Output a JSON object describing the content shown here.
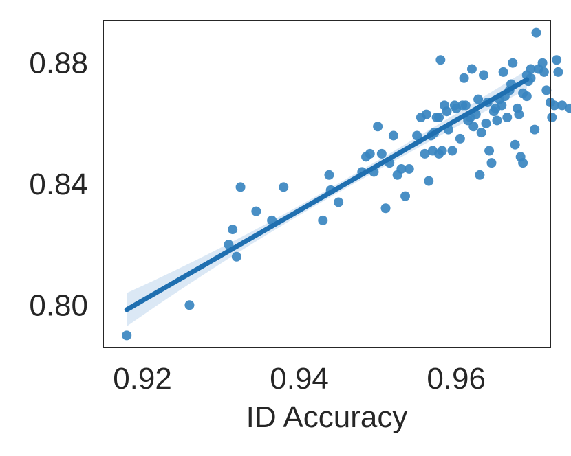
{
  "chart_data": {
    "type": "scatter",
    "title": "",
    "xlabel": "ID Accuracy",
    "ylabel": "",
    "xlim": [
      0.915,
      0.972
    ],
    "ylim": [
      0.786,
      0.894
    ],
    "x_ticks": [
      0.92,
      0.94,
      0.96
    ],
    "x_tick_labels": [
      "0.92",
      "0.94",
      "0.96"
    ],
    "y_ticks": [
      0.8,
      0.84,
      0.88
    ],
    "y_tick_labels": [
      "0.80",
      "0.84",
      "0.88"
    ],
    "grid": false,
    "legend": "none",
    "colors": {
      "points": "#3a86c0",
      "line": "#1f6fb0",
      "band": "#cfe0f1",
      "axes": "#262626"
    },
    "regression": {
      "x": [
        0.918,
        0.969
      ],
      "y": [
        0.7985,
        0.8745
      ],
      "band_halfwidth": [
        0.0055,
        0.0015,
        0.0032
      ]
    },
    "points": [
      [
        0.918,
        0.79
      ],
      [
        0.926,
        0.8
      ],
      [
        0.9315,
        0.825
      ],
      [
        0.931,
        0.82
      ],
      [
        0.932,
        0.816
      ],
      [
        0.9325,
        0.839
      ],
      [
        0.9345,
        0.831
      ],
      [
        0.9365,
        0.828
      ],
      [
        0.938,
        0.839
      ],
      [
        0.943,
        0.828
      ],
      [
        0.9438,
        0.843
      ],
      [
        0.944,
        0.838
      ],
      [
        0.945,
        0.834
      ],
      [
        0.948,
        0.844
      ],
      [
        0.9485,
        0.849
      ],
      [
        0.949,
        0.85
      ],
      [
        0.9495,
        0.844
      ],
      [
        0.95,
        0.859
      ],
      [
        0.9505,
        0.85
      ],
      [
        0.951,
        0.832
      ],
      [
        0.9515,
        0.847
      ],
      [
        0.952,
        0.856
      ],
      [
        0.9525,
        0.843
      ],
      [
        0.953,
        0.845
      ],
      [
        0.9535,
        0.836
      ],
      [
        0.954,
        0.845
      ],
      [
        0.955,
        0.856
      ],
      [
        0.9555,
        0.862
      ],
      [
        0.956,
        0.85
      ],
      [
        0.9562,
        0.863
      ],
      [
        0.9565,
        0.841
      ],
      [
        0.957,
        0.851
      ],
      [
        0.9572,
        0.857
      ],
      [
        0.9575,
        0.862
      ],
      [
        0.9578,
        0.85
      ],
      [
        0.958,
        0.881
      ],
      [
        0.9582,
        0.851
      ],
      [
        0.9585,
        0.866
      ],
      [
        0.959,
        0.858
      ],
      [
        0.9595,
        0.851
      ],
      [
        0.96,
        0.865
      ],
      [
        0.9605,
        0.855
      ],
      [
        0.961,
        0.875
      ],
      [
        0.9612,
        0.866
      ],
      [
        0.9615,
        0.861
      ],
      [
        0.962,
        0.878
      ],
      [
        0.9622,
        0.859
      ],
      [
        0.9625,
        0.863
      ],
      [
        0.963,
        0.843
      ],
      [
        0.9632,
        0.857
      ],
      [
        0.9635,
        0.876
      ],
      [
        0.964,
        0.867
      ],
      [
        0.9642,
        0.851
      ],
      [
        0.9645,
        0.847
      ],
      [
        0.965,
        0.865
      ],
      [
        0.9652,
        0.861
      ],
      [
        0.9655,
        0.868
      ],
      [
        0.966,
        0.877
      ],
      [
        0.9662,
        0.869
      ],
      [
        0.9665,
        0.862
      ],
      [
        0.967,
        0.873
      ],
      [
        0.9672,
        0.88
      ],
      [
        0.9675,
        0.853
      ],
      [
        0.968,
        0.863
      ],
      [
        0.9682,
        0.849
      ],
      [
        0.9685,
        0.847
      ],
      [
        0.969,
        0.869
      ],
      [
        0.9692,
        0.874
      ],
      [
        0.9695,
        0.878
      ],
      [
        0.97,
        0.858
      ],
      [
        0.9702,
        0.89
      ],
      [
        0.9705,
        0.878
      ],
      [
        0.971,
        0.88
      ],
      [
        0.9712,
        0.877
      ],
      [
        0.9715,
        0.871
      ],
      [
        0.972,
        0.867
      ],
      [
        0.9722,
        0.862
      ],
      [
        0.9725,
        0.866
      ],
      [
        0.9728,
        0.881
      ],
      [
        0.973,
        0.877
      ],
      [
        0.9735,
        0.866
      ],
      [
        0.9745,
        0.865
      ],
      [
        0.969,
        0.876
      ],
      [
        0.9695,
        0.875
      ],
      [
        0.9685,
        0.87
      ],
      [
        0.9678,
        0.865
      ],
      [
        0.9668,
        0.871
      ],
      [
        0.9658,
        0.866
      ],
      [
        0.9648,
        0.864
      ],
      [
        0.9638,
        0.86
      ],
      [
        0.9628,
        0.868
      ],
      [
        0.9618,
        0.862
      ],
      [
        0.9608,
        0.866
      ],
      [
        0.9598,
        0.866
      ],
      [
        0.9588,
        0.864
      ],
      [
        0.9578,
        0.862
      ],
      [
        0.9568,
        0.856
      ]
    ]
  }
}
